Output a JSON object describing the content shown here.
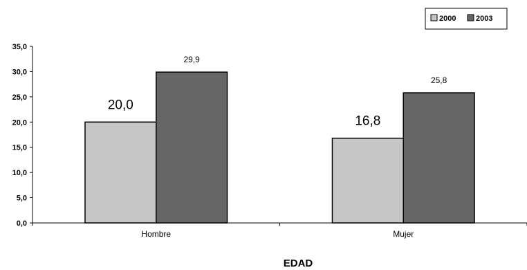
{
  "chart_data": {
    "type": "bar",
    "categories": [
      "Hombre",
      "Mujer"
    ],
    "series": [
      {
        "name": "2000",
        "values": [
          20.0,
          16.8
        ],
        "color": "#c6c6c6",
        "data_labels": [
          "20,0",
          "16,8"
        ],
        "label_style": "large"
      },
      {
        "name": "2003",
        "values": [
          29.9,
          25.8
        ],
        "color": "#666666",
        "data_labels": [
          "29,9",
          "25,8"
        ],
        "label_style": "small"
      }
    ],
    "title": "",
    "xlabel": "EDAD",
    "ylabel": "",
    "ylim": [
      0,
      35
    ],
    "yticks": [
      0,
      5,
      10,
      15,
      20,
      25,
      30,
      35
    ],
    "ytick_labels": [
      "0,0",
      "5,0",
      "10,0",
      "15,0",
      "20,0",
      "25,0",
      "30,0",
      "35,0"
    ],
    "grid": false,
    "legend_position": "top-right"
  }
}
